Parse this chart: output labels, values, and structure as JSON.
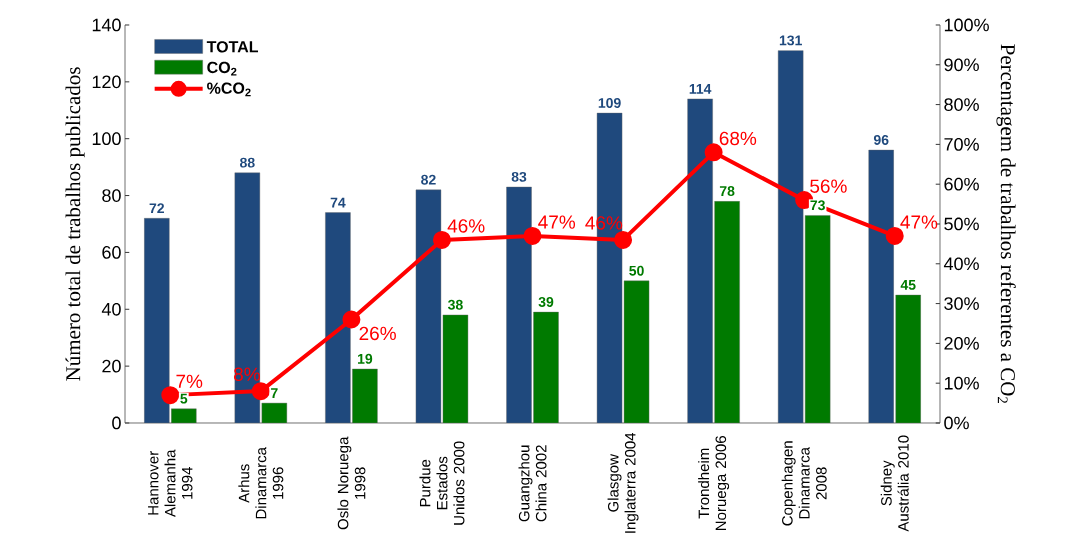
{
  "chart_data": {
    "type": "bar",
    "ylabel": "Número total de trabalhos publicados",
    "y2label": "Percentagem de trabalhos referentes a CO$_{2}$",
    "categories": [
      "Hannover Alemanha 1994",
      "Arhus Dinamarca 1996",
      "Oslo Noruega 1998",
      "Purdue Estados Unidos 2000",
      "Guangzhou China 2002",
      "Glasgow Inglaterra 2004",
      "Trondheim Noruega 2006",
      "Copenhagen Dinamarca 2008",
      "Sidney Austrália 2010"
    ],
    "series": [
      {
        "name": "TOTAL",
        "color": "#1f497d",
        "values": [
          72,
          88,
          74,
          82,
          83,
          109,
          114,
          131,
          96
        ]
      },
      {
        "name": "CO$_{2}$",
        "color": "#007a00",
        "values": [
          5,
          7,
          19,
          38,
          39,
          50,
          78,
          73,
          45
        ]
      },
      {
        "name": "%CO$_{2}$",
        "type": "line",
        "axis": "y2",
        "color": "#ff0000",
        "values": [
          7,
          8,
          26,
          46,
          47,
          46,
          68,
          56,
          47
        ],
        "value_labels": [
          "7%",
          "8%",
          "26%",
          "46%",
          "47%",
          "46%",
          "68%",
          "56%",
          "47%"
        ]
      }
    ],
    "data_labels": true,
    "marker": "circle",
    "line_style": "solid",
    "legend": "top left",
    "grid": false,
    "ylim": [
      0,
      140
    ],
    "yticks": [
      0,
      20,
      40,
      60,
      80,
      100,
      120,
      140
    ],
    "y2lim": [
      0,
      100
    ],
    "y2ticks": [
      {
        "value": 0,
        "label": "0%"
      },
      {
        "value": 10,
        "label": "10%"
      },
      {
        "value": 20,
        "label": "20%"
      },
      {
        "value": 30,
        "label": "30%"
      },
      {
        "value": 40,
        "label": "40%"
      },
      {
        "value": 50,
        "label": "50%"
      },
      {
        "value": 60,
        "label": "60%"
      },
      {
        "value": 70,
        "label": "70%"
      },
      {
        "value": 80,
        "label": "80%"
      },
      {
        "value": 90,
        "label": "90%"
      },
      {
        "value": 100,
        "label": "100%"
      }
    ]
  }
}
